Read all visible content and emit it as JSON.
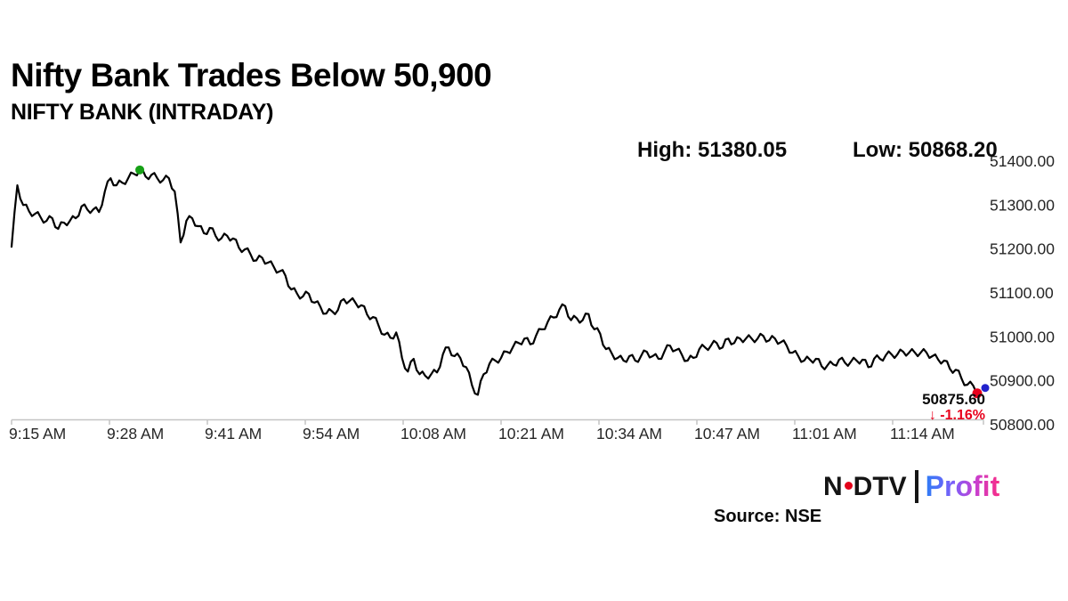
{
  "header": {
    "title": "Nifty Bank Trades Below 50,900",
    "subtitle": "NIFTY BANK (INTRADAY)"
  },
  "stats": {
    "high": "High: 51380.05",
    "low": "Low: 50868.20"
  },
  "callout": {
    "last_price": "50875.60",
    "change": "↓ -1.16%"
  },
  "footer": {
    "source": "Source: NSE",
    "logo": {
      "ndtv_n": "N",
      "ndtv_rest": "DTV",
      "profit": "Profit",
      "dot_color": "#e4021b",
      "profit_gradient": [
        "#2e7cf6",
        "#7d5ef9",
        "#c73fd0",
        "#f92d86"
      ]
    }
  },
  "chart_data": {
    "type": "line",
    "title": "NIFTY BANK (INTRADAY)",
    "grid": false,
    "legend": false,
    "line_color": "#000000",
    "axis_color": "#c4c4c4",
    "tick_label_color": "#262626",
    "high": 51380.05,
    "low": 50868.2,
    "last": 50875.6,
    "change_pct": -1.16,
    "x_axis": {
      "labels": [
        "9:15 AM",
        "9:28 AM",
        "9:41 AM",
        "9:54 AM",
        "10:08 AM",
        "10:21 AM",
        "10:34 AM",
        "10:47 AM",
        "11:01 AM",
        "11:14 AM"
      ]
    },
    "y_axis": {
      "range": [
        50800,
        51400
      ],
      "ticks": [
        51400,
        51300,
        51200,
        51100,
        51000,
        50900,
        50800
      ],
      "tick_labels": [
        "51400.00",
        "51300.00",
        "51200.00",
        "51100.00",
        "51000.00",
        "50900.00",
        "50800.00"
      ]
    },
    "markers": {
      "peak_index": 22,
      "peak_color": "#16a016",
      "last_color": "#e8001c",
      "last_secondary_color": "#2222cc"
    },
    "values": [
      51205,
      51345,
      51300,
      51286,
      51280,
      51272,
      51264,
      51270,
      51246,
      51260,
      51264,
      51270,
      51297,
      51290,
      51290,
      51284,
      51331,
      51361,
      51345,
      51351,
      51361,
      51371,
      51380.05,
      51365,
      51369,
      51361,
      51357,
      51361,
      51331,
      51215,
      51264,
      51270,
      51252,
      51236,
      51248,
      51230,
      51224,
      51230,
      51224,
      51203,
      51199,
      51188,
      51174,
      51180,
      51169,
      51159,
      51149,
      51139,
      51108,
      51098,
      51092,
      51098,
      51078,
      51068,
      51053,
      51058,
      51061,
      51086,
      51082,
      51078,
      51072,
      51051,
      51045,
      51025,
      51005,
      50998,
      51010,
      50952,
      50921,
      50950,
      50915,
      50911,
      50915,
      50919,
      50960,
      50976,
      50956,
      50952,
      50931,
      50890,
      50868.2,
      50915,
      50939,
      50946,
      50952,
      50966,
      50976,
      50986,
      50996,
      50983,
      51003,
      51017,
      51034,
      51044,
      51062,
      51070,
      51038,
      51042,
      51038,
      51052,
      51017,
      51007,
      50972,
      50962,
      50952,
      50946,
      50956,
      50946,
      50956,
      50966,
      50956,
      50950,
      50966,
      50980,
      50970,
      50960,
      50946,
      50952,
      50972,
      50976,
      50980,
      50986,
      50976,
      50996,
      50986,
      50996,
      50996,
      50996,
      50996,
      51002,
      50992,
      50996,
      50988,
      50980,
      50964,
      50956,
      50946,
      50948,
      50950,
      50933,
      50935,
      50937,
      50948,
      50941,
      50943,
      50946,
      50948,
      50931,
      50950,
      50950,
      50958,
      50960,
      50960,
      50966,
      50964,
      50964,
      50964,
      50964,
      50956,
      50948,
      50946,
      50927,
      50925,
      50905,
      50891,
      50889,
      50875.6
    ]
  }
}
